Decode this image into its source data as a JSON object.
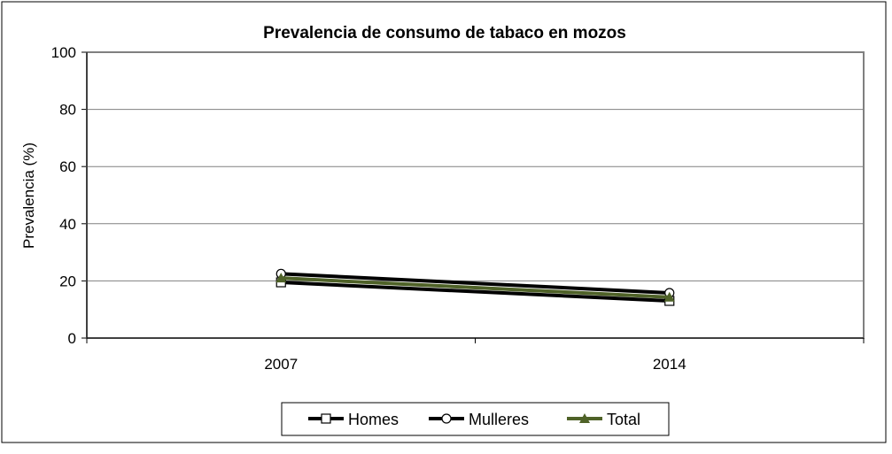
{
  "chart_data": {
    "type": "line",
    "title": "Prevalencia de consumo de tabaco en mozos",
    "xlabel": "",
    "ylabel": "Prevalencia (%)",
    "categories": [
      "2007",
      "2014"
    ],
    "ylim": [
      0,
      100
    ],
    "yticks": [
      "0",
      "20",
      "40",
      "60",
      "80",
      "100"
    ],
    "grid": true,
    "legend_position": "bottom",
    "series": [
      {
        "name": "Homes",
        "values": [
          19.5,
          13
        ],
        "color": "#000000",
        "marker": "square"
      },
      {
        "name": "Mulleres",
        "values": [
          22.5,
          15.8
        ],
        "color": "#000000",
        "marker": "circle"
      },
      {
        "name": "Total",
        "values": [
          21,
          14.3
        ],
        "color": "#4f6228",
        "marker": "triangle"
      }
    ]
  }
}
